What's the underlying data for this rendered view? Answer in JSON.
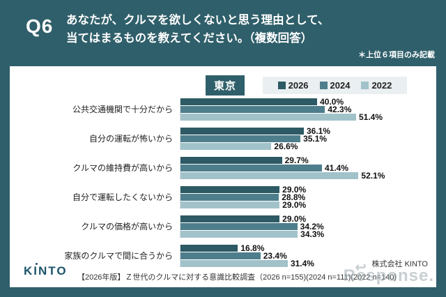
{
  "header": {
    "q_label": "Q6",
    "question_line1": "あなたが、クルマを欲しくないと思う理由として、",
    "question_line2": "当てはまるものを教えてください。（複数回答）",
    "note": "＊上位６項目のみ記載"
  },
  "region_badge": "東京",
  "chart_data": {
    "type": "bar",
    "orientation": "horizontal",
    "title": "",
    "categories": [
      "公共交通機関で十分だから",
      "自分の運転が怖いから",
      "クルマの維持費が高いから",
      "自分で運転したくないから",
      "クルマの価格が高いから",
      "家族のクルマで間に合うから"
    ],
    "series": [
      {
        "name": "2026",
        "color": "#2d5a64",
        "values": [
          40.0,
          36.1,
          29.7,
          29.0,
          29.0,
          16.8
        ]
      },
      {
        "name": "2024",
        "color": "#4e7e8b",
        "values": [
          42.3,
          35.1,
          41.4,
          28.8,
          34.2,
          23.4
        ]
      },
      {
        "name": "2022",
        "color": "#a2c2ca",
        "values": [
          51.4,
          26.6,
          52.1,
          29.0,
          34.3,
          31.4
        ]
      }
    ],
    "value_suffix": "%",
    "xmax": 72,
    "grid": false,
    "legend_position": "top-right"
  },
  "footer": {
    "company": "株式会社 KINTO",
    "source": "【2026年版】Ｚ世代のクルマに対する意識比較調査（2026 n=155)(2024 n=111)(2022 n=140)",
    "logo": "KINTO"
  },
  "watermark": {
    "text": "Response.",
    "arrow_glyph": "↩"
  },
  "colors": {
    "background_teal": "#2f5f6a",
    "card_white": "#ffffff",
    "legend_bg": "#eaeff1",
    "badge_bg": "#2f5f6a",
    "logo_navy": "#1d546b",
    "value_text": "#111111"
  }
}
